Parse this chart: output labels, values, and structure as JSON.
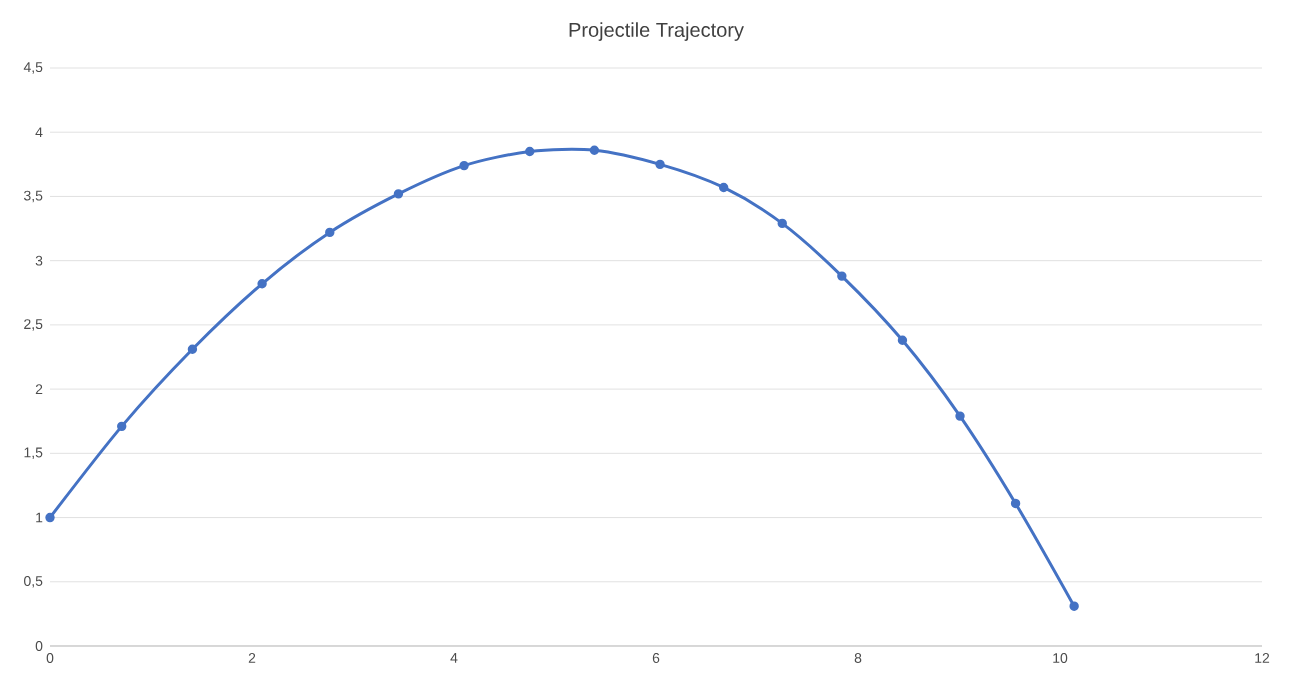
{
  "chart_data": {
    "type": "line",
    "title": "Projectile Trajectory",
    "x": [
      0,
      0.71,
      1.41,
      2.1,
      2.77,
      3.45,
      4.1,
      4.75,
      5.39,
      6.04,
      6.67,
      7.25,
      7.84,
      8.44,
      9.01,
      9.56,
      10.14
    ],
    "values": [
      1.0,
      1.71,
      2.31,
      2.82,
      3.22,
      3.52,
      3.74,
      3.85,
      3.86,
      3.75,
      3.57,
      3.29,
      2.88,
      2.38,
      1.79,
      1.11,
      0.31
    ],
    "color": "#4472c4",
    "marker": "circle",
    "line_style": "solid",
    "xlim": [
      0,
      12
    ],
    "xticks": [
      0,
      2,
      4,
      6,
      8,
      10,
      12
    ],
    "ylim": [
      0,
      4.5
    ],
    "yticks": [
      0,
      {
        "value": 0.5,
        "label": "0,5"
      },
      1,
      {
        "value": 1.5,
        "label": "1,5"
      },
      2,
      {
        "value": 2.5,
        "label": "2,5"
      },
      3,
      {
        "value": 3.5,
        "label": "3,5"
      },
      4,
      {
        "value": 4.5,
        "label": "4,5"
      }
    ],
    "grid": "y"
  }
}
